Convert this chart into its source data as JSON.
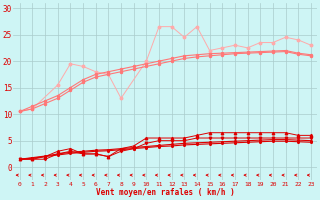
{
  "x": [
    0,
    1,
    2,
    3,
    4,
    5,
    6,
    7,
    8,
    9,
    10,
    11,
    12,
    13,
    14,
    15,
    16,
    17,
    18,
    19,
    20,
    21,
    22,
    23
  ],
  "line_noisy": [
    10.5,
    11.0,
    null,
    15.5,
    19.5,
    19.0,
    18.0,
    17.5,
    13.0,
    null,
    20.0,
    26.5,
    26.5,
    24.5,
    26.5,
    22.0,
    22.5,
    23.0,
    22.5,
    23.5,
    23.5,
    24.5,
    24.0,
    23.0
  ],
  "line_smooth1": [
    10.5,
    11.5,
    12.5,
    13.5,
    15.0,
    16.5,
    17.5,
    18.0,
    18.5,
    19.0,
    19.5,
    20.0,
    20.5,
    21.0,
    21.2,
    21.4,
    21.5,
    21.6,
    21.7,
    21.8,
    21.9,
    22.0,
    21.5,
    21.2
  ],
  "line_smooth2": [
    10.5,
    11.0,
    12.0,
    13.0,
    14.5,
    16.0,
    17.0,
    17.5,
    18.0,
    18.5,
    19.0,
    19.5,
    20.0,
    20.5,
    20.8,
    21.0,
    21.2,
    21.4,
    21.5,
    21.6,
    21.7,
    21.8,
    21.3,
    21.0
  ],
  "red_noisy1": [
    1.5,
    1.5,
    2.0,
    3.0,
    3.5,
    2.5,
    2.5,
    2.0,
    3.5,
    4.0,
    5.5,
    5.5,
    5.5,
    5.5,
    6.0,
    6.5,
    6.5,
    6.5,
    6.5,
    6.5,
    6.5,
    6.5,
    6.0,
    6.0
  ],
  "red_noisy2": [
    1.5,
    1.5,
    1.5,
    2.5,
    3.0,
    2.5,
    2.5,
    2.0,
    3.0,
    3.5,
    4.5,
    5.0,
    5.0,
    5.0,
    5.5,
    5.5,
    5.5,
    5.5,
    5.5,
    5.5,
    5.5,
    5.5,
    5.5,
    5.5
  ],
  "red_smooth1": [
    1.5,
    1.8,
    2.1,
    2.5,
    2.8,
    3.0,
    3.2,
    3.3,
    3.5,
    3.7,
    3.9,
    4.1,
    4.3,
    4.5,
    4.6,
    4.7,
    4.8,
    4.9,
    5.0,
    5.1,
    5.2,
    5.2,
    5.1,
    5.0
  ],
  "red_smooth2": [
    1.5,
    1.7,
    2.0,
    2.3,
    2.6,
    2.8,
    3.0,
    3.1,
    3.3,
    3.5,
    3.7,
    3.9,
    4.0,
    4.2,
    4.3,
    4.4,
    4.5,
    4.6,
    4.7,
    4.8,
    4.9,
    4.9,
    4.8,
    4.7
  ],
  "bg_color": "#cef5f5",
  "grid_color": "#aacccc",
  "light_salmon": "#ffaaaa",
  "salmon_color": "#ff7777",
  "red_color": "#dd0000",
  "xlabel": "Vent moyen/en rafales ( km/h )",
  "yticks": [
    0,
    5,
    10,
    15,
    20,
    25,
    30
  ],
  "xlim": [
    -0.5,
    23.5
  ],
  "ylim": [
    -2.5,
    31
  ]
}
